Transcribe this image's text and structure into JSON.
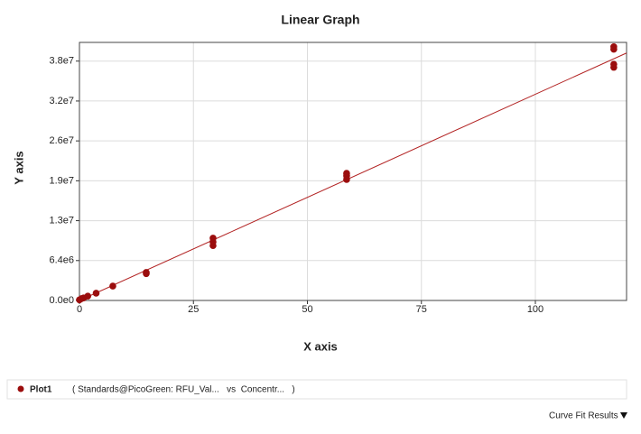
{
  "chart_data": {
    "type": "scatter",
    "title": "Linear Graph",
    "x_label": "X axis",
    "y_label": "Y axis",
    "series": [
      {
        "name": "Plot1",
        "color": "#9b0d0d",
        "x": [
          0,
          0.46,
          0.92,
          1.83,
          3.66,
          7.32,
          14.65,
          14.65,
          29.3,
          29.3,
          29.3,
          58.6,
          58.6,
          58.6,
          117.2,
          117.2,
          117.2,
          117.2
        ],
        "values": [
          100000,
          300000,
          400000,
          700000,
          1160000,
          2300000,
          4300000,
          4500000,
          8800000,
          9400000,
          10000000,
          19400000,
          20000000,
          20400000,
          37400000,
          37900000,
          40300000,
          40700000
        ]
      }
    ],
    "fit_line": {
      "color": "#b22222",
      "x": [
        0,
        120
      ],
      "values": [
        0,
        39700000
      ]
    },
    "legend_description": "( Standards@PicoGreen: RFU_Val...   vs  Concentr...   )",
    "footer": "Curve Fit Results",
    "xlim": [
      0,
      120
    ],
    "xticks": [
      0,
      25,
      50,
      75,
      100
    ],
    "ylim": [
      0,
      41400000
    ],
    "yticks": [
      {
        "value": 0,
        "label": "0.0e0"
      },
      {
        "value": 6400000,
        "label": "6.4e6"
      },
      {
        "value": 12800000,
        "label": "1.3e7"
      },
      {
        "value": 19200000,
        "label": "1.9e7"
      },
      {
        "value": 25600000,
        "label": "2.6e7"
      },
      {
        "value": 32000000,
        "label": "3.2e7"
      },
      {
        "value": 38400000,
        "label": "3.8e7"
      }
    ],
    "grid": true
  }
}
